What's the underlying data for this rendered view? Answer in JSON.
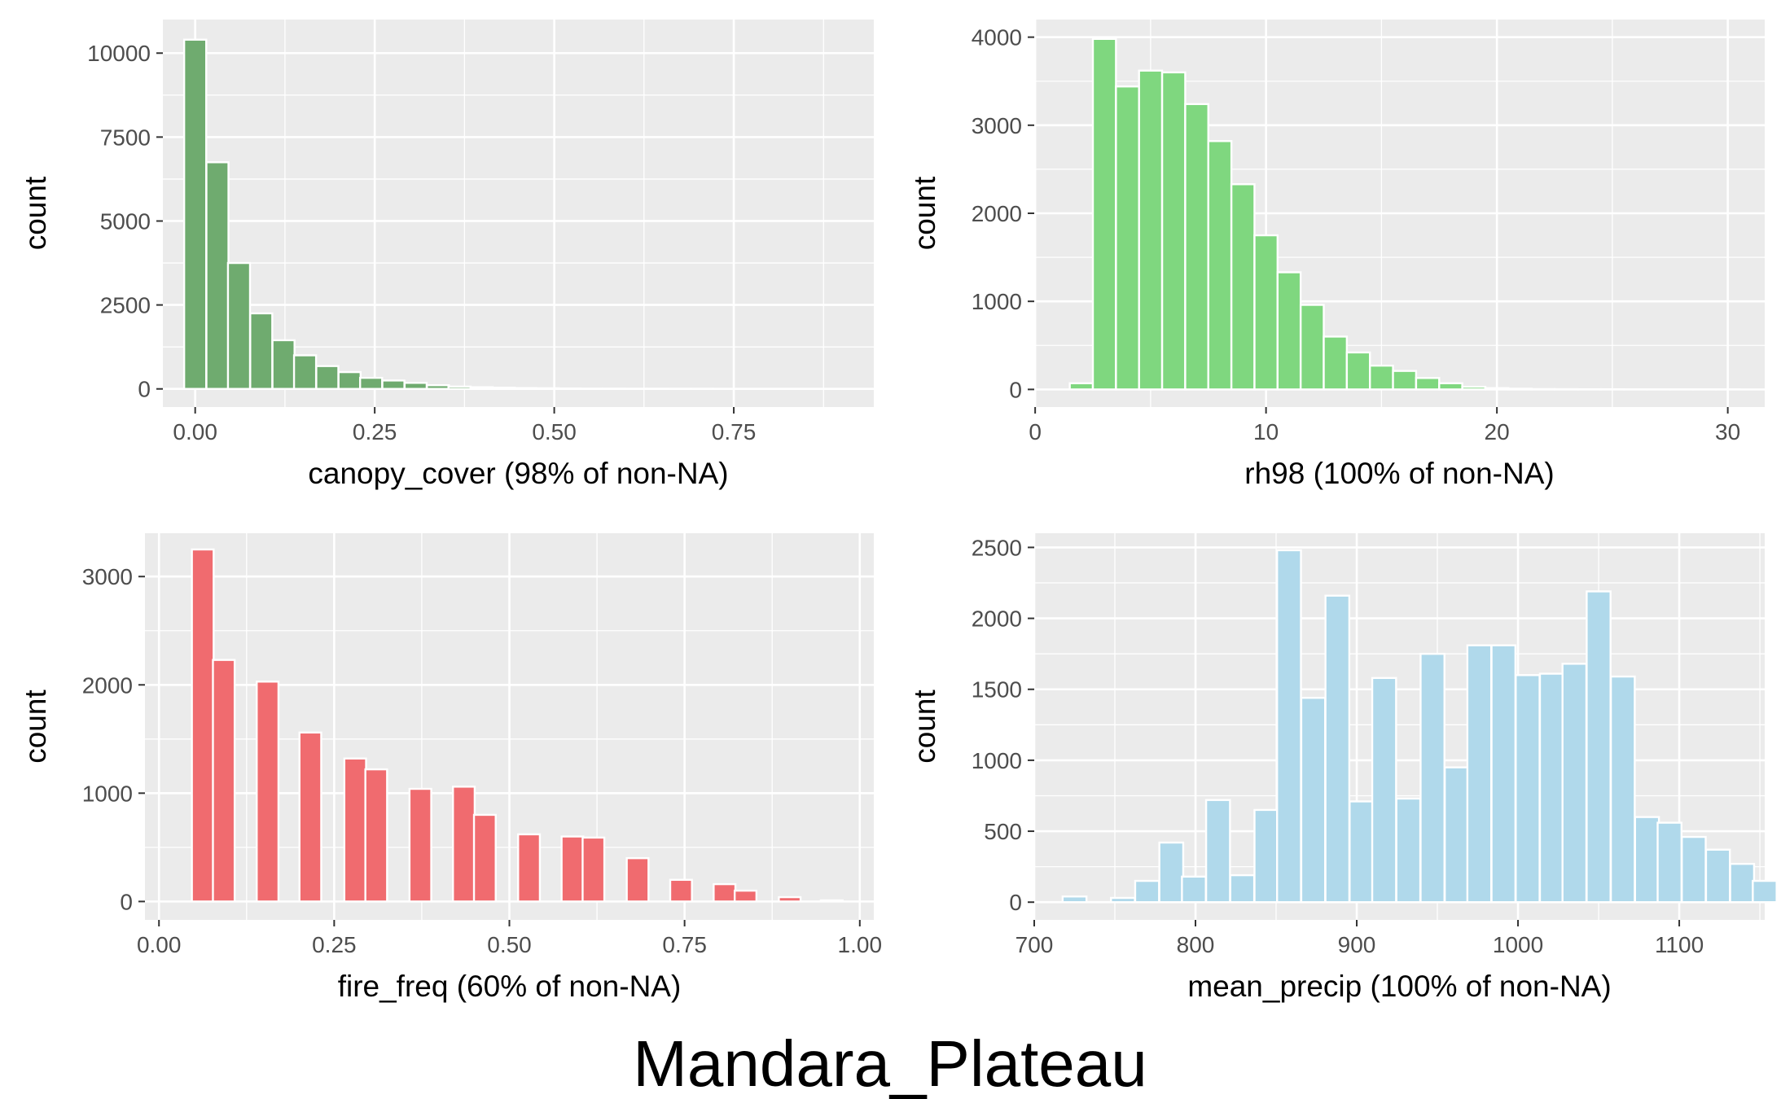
{
  "figure_title": "Mandara_Plateau",
  "chart_data": [
    {
      "type": "bar",
      "xlabel": "canopy_cover (98% of non-NA)",
      "ylabel": "count",
      "color": "#6aa86a",
      "xlim": [
        -0.045,
        0.945
      ],
      "ylim": [
        -540,
        11000
      ],
      "xticks": [
        0.0,
        0.25,
        0.5,
        0.75
      ],
      "xtick_labels": [
        "0.00",
        "0.25",
        "0.50",
        "0.75"
      ],
      "yticks": [
        0,
        2500,
        5000,
        7500,
        10000
      ],
      "ytick_labels": [
        "0",
        "2500",
        "5000",
        "7500",
        "10000"
      ],
      "bin_width": 0.0307,
      "bins": [
        {
          "x": 0.0,
          "y": 10400
        },
        {
          "x": 0.031,
          "y": 6750
        },
        {
          "x": 0.061,
          "y": 3750
        },
        {
          "x": 0.092,
          "y": 2250
        },
        {
          "x": 0.123,
          "y": 1450
        },
        {
          "x": 0.153,
          "y": 1000
        },
        {
          "x": 0.184,
          "y": 680
        },
        {
          "x": 0.215,
          "y": 500
        },
        {
          "x": 0.245,
          "y": 330
        },
        {
          "x": 0.276,
          "y": 250
        },
        {
          "x": 0.307,
          "y": 180
        },
        {
          "x": 0.338,
          "y": 110
        },
        {
          "x": 0.368,
          "y": 70
        },
        {
          "x": 0.399,
          "y": 50
        },
        {
          "x": 0.43,
          "y": 35
        },
        {
          "x": 0.46,
          "y": 25
        },
        {
          "x": 0.491,
          "y": 18
        },
        {
          "x": 0.522,
          "y": 12
        },
        {
          "x": 0.552,
          "y": 8
        },
        {
          "x": 0.583,
          "y": 6
        },
        {
          "x": 0.614,
          "y": 5
        },
        {
          "x": 0.644,
          "y": 4
        },
        {
          "x": 0.675,
          "y": 3
        },
        {
          "x": 0.706,
          "y": 3
        },
        {
          "x": 0.736,
          "y": 2
        },
        {
          "x": 0.767,
          "y": 2
        },
        {
          "x": 0.798,
          "y": 1
        },
        {
          "x": 0.828,
          "y": 1
        },
        {
          "x": 0.859,
          "y": 1
        },
        {
          "x": 0.89,
          "y": 1
        }
      ]
    },
    {
      "type": "bar",
      "xlabel": "rh98 (100% of non-NA)",
      "ylabel": "count",
      "color": "#7bd67b",
      "xlim": [
        -0.04,
        31.6
      ],
      "ylim": [
        -200,
        4200
      ],
      "xticks": [
        0,
        10,
        20,
        30
      ],
      "xtick_labels": [
        "0",
        "10",
        "20",
        "30"
      ],
      "yticks": [
        0,
        1000,
        2000,
        3000,
        4000
      ],
      "ytick_labels": [
        "0",
        "1000",
        "2000",
        "3000",
        "4000"
      ],
      "bin_width": 1.0,
      "bins": [
        {
          "x": 2,
          "y": 70
        },
        {
          "x": 3,
          "y": 3980
        },
        {
          "x": 4,
          "y": 3440
        },
        {
          "x": 5,
          "y": 3620
        },
        {
          "x": 6,
          "y": 3600
        },
        {
          "x": 7,
          "y": 3240
        },
        {
          "x": 8,
          "y": 2820
        },
        {
          "x": 9,
          "y": 2330
        },
        {
          "x": 10,
          "y": 1750
        },
        {
          "x": 11,
          "y": 1330
        },
        {
          "x": 12,
          "y": 960
        },
        {
          "x": 13,
          "y": 600
        },
        {
          "x": 14,
          "y": 420
        },
        {
          "x": 15,
          "y": 270
        },
        {
          "x": 16,
          "y": 210
        },
        {
          "x": 17,
          "y": 130
        },
        {
          "x": 18,
          "y": 70
        },
        {
          "x": 19,
          "y": 30
        },
        {
          "x": 20,
          "y": 15
        },
        {
          "x": 21,
          "y": 8
        },
        {
          "x": 22,
          "y": 4
        },
        {
          "x": 23,
          "y": 3
        },
        {
          "x": 24,
          "y": 2
        },
        {
          "x": 25,
          "y": 2
        },
        {
          "x": 26,
          "y": 1
        },
        {
          "x": 27,
          "y": 1
        },
        {
          "x": 28,
          "y": 1
        },
        {
          "x": 29,
          "y": 1
        },
        {
          "x": 30,
          "y": 1
        }
      ]
    },
    {
      "type": "bar",
      "xlabel": "fire_freq (60% of non-NA)",
      "ylabel": "count",
      "color": "#f0666a",
      "xlim": [
        -0.02,
        1.02
      ],
      "ylim": [
        -170,
        3400
      ],
      "xticks": [
        0.0,
        0.25,
        0.5,
        0.75,
        1.0
      ],
      "xtick_labels": [
        "0.00",
        "0.25",
        "0.50",
        "0.75",
        "1.00"
      ],
      "yticks": [
        0,
        1000,
        2000,
        3000
      ],
      "ytick_labels": [
        "0",
        "1000",
        "2000",
        "3000"
      ],
      "bin_width": 0.031,
      "bins": [
        {
          "x": 0.0625,
          "y": 3250
        },
        {
          "x": 0.0925,
          "y": 2230
        },
        {
          "x": 0.155,
          "y": 2030
        },
        {
          "x": 0.216,
          "y": 1560
        },
        {
          "x": 0.28,
          "y": 1320
        },
        {
          "x": 0.31,
          "y": 1220
        },
        {
          "x": 0.373,
          "y": 1040
        },
        {
          "x": 0.435,
          "y": 1060
        },
        {
          "x": 0.465,
          "y": 800
        },
        {
          "x": 0.528,
          "y": 620
        },
        {
          "x": 0.59,
          "y": 600
        },
        {
          "x": 0.62,
          "y": 590
        },
        {
          "x": 0.683,
          "y": 400
        },
        {
          "x": 0.745,
          "y": 200
        },
        {
          "x": 0.807,
          "y": 160
        },
        {
          "x": 0.837,
          "y": 100
        },
        {
          "x": 0.9,
          "y": 40
        },
        {
          "x": 0.96,
          "y": 10
        }
      ]
    },
    {
      "type": "bar",
      "xlabel": "mean_precip (100% of non-NA)",
      "ylabel": "count",
      "color": "#add8ea",
      "xlim": [
        700,
        1153
      ],
      "ylim": [
        -125,
        2600
      ],
      "xticks": [
        700,
        800,
        900,
        1000,
        1100
      ],
      "xtick_labels": [
        "700",
        "800",
        "900",
        "1000",
        "1100"
      ],
      "yticks": [
        0,
        500,
        1000,
        1500,
        2000,
        2500
      ],
      "ytick_labels": [
        "0",
        "500",
        "1000",
        "1500",
        "2000",
        "2500"
      ],
      "bin_width": 14.8,
      "bins": [
        {
          "x": 725,
          "y": 40
        },
        {
          "x": 740,
          "y": 0
        },
        {
          "x": 755,
          "y": 30
        },
        {
          "x": 770,
          "y": 150
        },
        {
          "x": 785,
          "y": 420
        },
        {
          "x": 799,
          "y": 180
        },
        {
          "x": 814,
          "y": 720
        },
        {
          "x": 829,
          "y": 190
        },
        {
          "x": 844,
          "y": 650
        },
        {
          "x": 858,
          "y": 2480
        },
        {
          "x": 873,
          "y": 1440
        },
        {
          "x": 888,
          "y": 2160
        },
        {
          "x": 903,
          "y": 710
        },
        {
          "x": 917,
          "y": 1580
        },
        {
          "x": 932,
          "y": 730
        },
        {
          "x": 947,
          "y": 1750
        },
        {
          "x": 962,
          "y": 950
        },
        {
          "x": 976,
          "y": 1810
        },
        {
          "x": 991,
          "y": 1810
        },
        {
          "x": 1006,
          "y": 1600
        },
        {
          "x": 1021,
          "y": 1610
        },
        {
          "x": 1035,
          "y": 1680
        },
        {
          "x": 1050,
          "y": 2190
        },
        {
          "x": 1065,
          "y": 1590
        },
        {
          "x": 1080,
          "y": 600
        },
        {
          "x": 1094,
          "y": 560
        },
        {
          "x": 1109,
          "y": 460
        },
        {
          "x": 1124,
          "y": 370
        },
        {
          "x": 1139,
          "y": 270
        },
        {
          "x": 1153,
          "y": 150
        }
      ]
    }
  ]
}
